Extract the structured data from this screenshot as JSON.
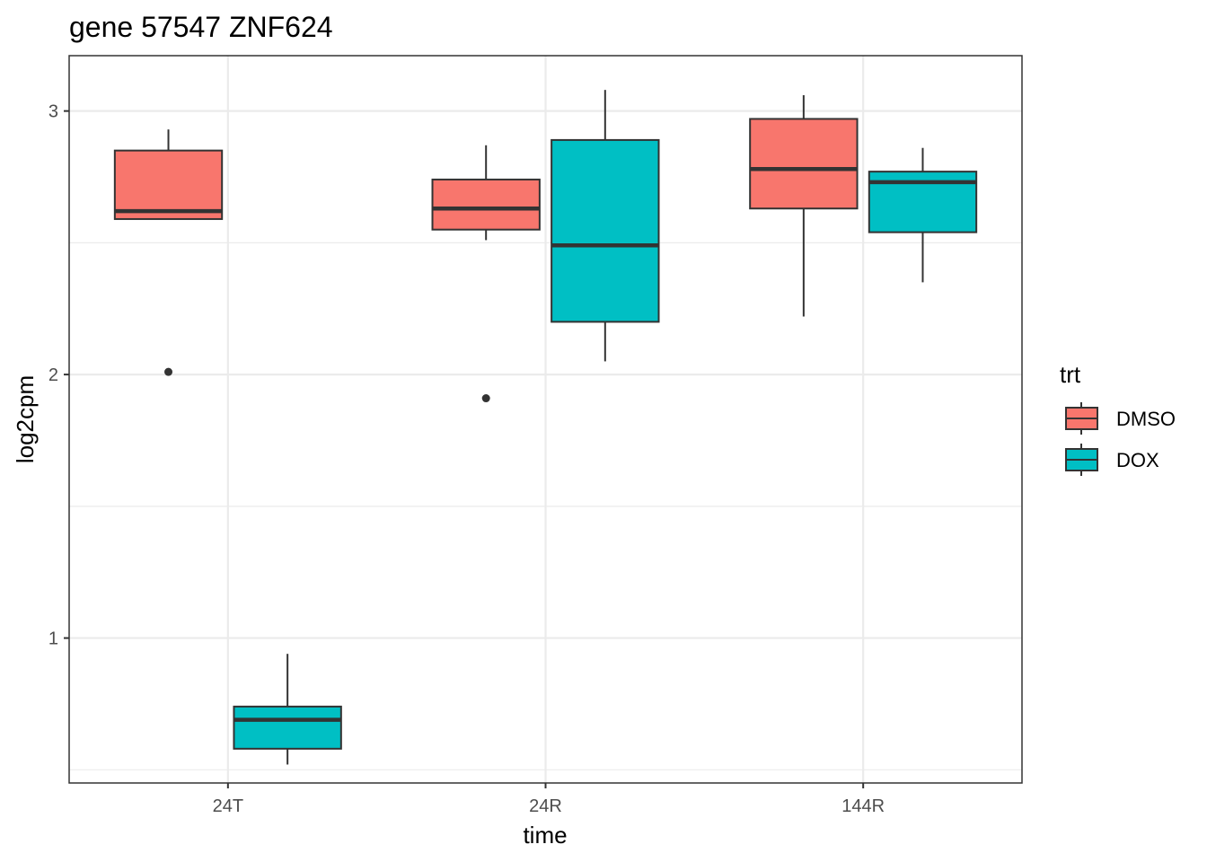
{
  "chart_data": {
    "type": "boxplot",
    "title": "gene 57547 ZNF624",
    "xlabel": "time",
    "ylabel": "log2cpm",
    "categories": [
      "24T",
      "24R",
      "144R"
    ],
    "yticks": [
      1,
      2,
      3
    ],
    "ylim": [
      0.45,
      3.21
    ],
    "grid": true,
    "legend": {
      "title": "trt",
      "position": "right",
      "entries": [
        {
          "name": "DMSO",
          "color": "#F8766D"
        },
        {
          "name": "DOX",
          "color": "#00BFC4"
        }
      ]
    },
    "series": [
      {
        "name": "DMSO",
        "color": "#F8766D",
        "boxes": [
          {
            "category": "24T",
            "whisker_low": 2.59,
            "q1": 2.59,
            "median": 2.62,
            "q3": 2.85,
            "whisker_high": 2.93,
            "outliers": [
              2.01
            ]
          },
          {
            "category": "24R",
            "whisker_low": 2.51,
            "q1": 2.55,
            "median": 2.63,
            "q3": 2.74,
            "whisker_high": 2.87,
            "outliers": [
              1.91
            ]
          },
          {
            "category": "144R",
            "whisker_low": 2.22,
            "q1": 2.63,
            "median": 2.78,
            "q3": 2.97,
            "whisker_high": 3.06,
            "outliers": []
          }
        ]
      },
      {
        "name": "DOX",
        "color": "#00BFC4",
        "boxes": [
          {
            "category": "24T",
            "whisker_low": 0.52,
            "q1": 0.58,
            "median": 0.69,
            "q3": 0.74,
            "whisker_high": 0.94,
            "outliers": []
          },
          {
            "category": "24R",
            "whisker_low": 2.05,
            "q1": 2.2,
            "median": 2.49,
            "q3": 2.89,
            "whisker_high": 3.08,
            "outliers": []
          },
          {
            "category": "144R",
            "whisker_low": 2.35,
            "q1": 2.54,
            "median": 2.73,
            "q3": 2.77,
            "whisker_high": 2.86,
            "outliers": []
          }
        ]
      }
    ]
  }
}
